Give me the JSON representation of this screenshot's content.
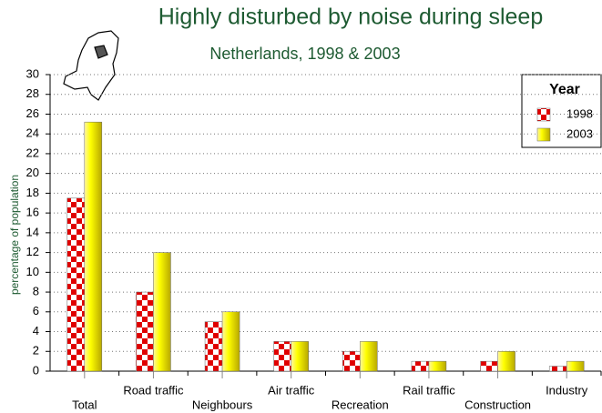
{
  "chart_data": {
    "type": "bar",
    "title": "Highly disturbed by noise during sleep",
    "subtitle": "Netherlands, 1998 & 2003",
    "y_label": "percentage of population",
    "categories": [
      "Total",
      "Road traffic",
      "Neighbours",
      "Air traffic",
      "Recreation",
      "Rail traffic",
      "Construction",
      "Industry"
    ],
    "series": [
      {
        "name": "1998",
        "color": "#e00000",
        "values": [
          17.5,
          8,
          5,
          3,
          2,
          1,
          1,
          0.5
        ]
      },
      {
        "name": "2003",
        "color": "#ffff00",
        "values": [
          25.2,
          12,
          6,
          3,
          3,
          1,
          2,
          1
        ]
      }
    ],
    "ylim": [
      0,
      30
    ],
    "yticks": [
      0,
      2,
      4,
      6,
      8,
      10,
      12,
      14,
      16,
      18,
      20,
      22,
      24,
      26,
      28,
      30
    ],
    "grid": true,
    "legend_title": "Year",
    "legend": "upper right"
  }
}
